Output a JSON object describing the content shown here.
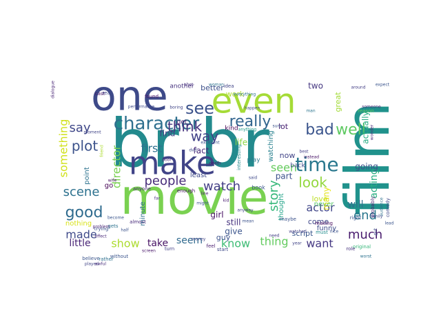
{
  "figure": {
    "words": [
      {
        "text": "br br",
        "color": "#238a8d"
      },
      {
        "text": "movie",
        "color": "#7ad151"
      },
      {
        "text": "film",
        "color": "#20928c"
      },
      {
        "text": "one",
        "color": "#3e4a89"
      },
      {
        "text": "even",
        "color": "#a5db36"
      },
      {
        "text": "make",
        "color": "#404387"
      },
      {
        "text": "character",
        "color": "#2e6f8e"
      },
      {
        "text": "time",
        "color": "#2a788e"
      },
      {
        "text": "see",
        "color": "#3b528b"
      },
      {
        "text": "really",
        "color": "#32658e"
      },
      {
        "text": "good",
        "color": "#2f6b8e"
      },
      {
        "text": "bad",
        "color": "#3a548c"
      },
      {
        "text": "way",
        "color": "#414287"
      },
      {
        "text": "think",
        "color": "#46337e"
      },
      {
        "text": "well",
        "color": "#5ec962"
      },
      {
        "text": "story",
        "color": "#35b779"
      },
      {
        "text": "look",
        "color": "#94d840"
      },
      {
        "text": "plot",
        "color": "#3b528b"
      },
      {
        "text": "people",
        "color": "#472c7a"
      },
      {
        "text": "watch",
        "color": "#433e85"
      },
      {
        "text": "scene",
        "color": "#2c718e"
      },
      {
        "text": "made",
        "color": "#3e4989"
      },
      {
        "text": "know",
        "color": "#3dbc74"
      },
      {
        "text": "show",
        "color": "#addc30"
      },
      {
        "text": "much",
        "color": "#481b6d"
      },
      {
        "text": "end",
        "color": "#2a768e"
      },
      {
        "text": "actor",
        "color": "#404688"
      },
      {
        "text": "say",
        "color": "#3f4788"
      },
      {
        "text": "first",
        "color": "#2d708e"
      },
      {
        "text": "something",
        "color": "#d0e11c"
      },
      {
        "text": "director",
        "color": "#7ad151"
      },
      {
        "text": "seem",
        "color": "#306a8e"
      },
      {
        "text": "thing",
        "color": "#63cb5f"
      },
      {
        "text": "little",
        "color": "#482475"
      },
      {
        "text": "take",
        "color": "#471365"
      },
      {
        "text": "acting",
        "color": "#26ad81"
      },
      {
        "text": "will",
        "color": "#2d708e"
      },
      {
        "text": "want",
        "color": "#453882"
      },
      {
        "text": "seen",
        "color": "#65cb5e"
      },
      {
        "text": "find",
        "color": "#433d84"
      },
      {
        "text": "fact",
        "color": "#482979"
      },
      {
        "text": "life",
        "color": "#8bd646"
      },
      {
        "text": "go",
        "color": "#440154"
      },
      {
        "text": "going",
        "color": "#3b528b"
      },
      {
        "text": "actually",
        "color": "#25ac82"
      },
      {
        "text": "give",
        "color": "#3a548c"
      },
      {
        "text": "still",
        "color": "#46337e"
      },
      {
        "text": "work",
        "color": "#addc30"
      },
      {
        "text": "two",
        "color": "#453781"
      },
      {
        "text": "point",
        "color": "#2c728e"
      },
      {
        "text": "part",
        "color": "#3b518b"
      },
      {
        "text": "lot",
        "color": "#482071"
      },
      {
        "text": "never",
        "color": "#56c667"
      },
      {
        "text": "love",
        "color": "#bddf26"
      },
      {
        "text": "many",
        "color": "#e5e419"
      },
      {
        "text": "better",
        "color": "#3c4f8a"
      },
      {
        "text": "guy",
        "color": "#3b528b"
      },
      {
        "text": "girl",
        "color": "#471063"
      },
      {
        "text": "come",
        "color": "#3f4889"
      },
      {
        "text": "now",
        "color": "#414487"
      },
      {
        "text": "kind",
        "color": "#440154"
      },
      {
        "text": "great",
        "color": "#a2da37"
      },
      {
        "text": "watching",
        "color": "#27808e"
      },
      {
        "text": "funny",
        "color": "#3e4c8a"
      },
      {
        "text": "nothing",
        "color": "#d8e219"
      },
      {
        "text": "another",
        "color": "#46327e"
      },
      {
        "text": "script",
        "color": "#39568c"
      },
      {
        "text": "minute",
        "color": "#2e6e8e"
      },
      {
        "text": "thought",
        "color": "#1fa287"
      },
      {
        "text": "got",
        "color": "#481b6d"
      },
      {
        "text": "back",
        "color": "#3e4a89"
      },
      {
        "text": "interesting",
        "color": "#238a8d"
      },
      {
        "text": "least",
        "color": "#3e4989"
      },
      {
        "text": "play",
        "color": "#2a788e"
      },
      {
        "text": "enough",
        "color": "#471063"
      },
      {
        "text": "book",
        "color": "#3a548c"
      },
      {
        "text": "making",
        "color": "#46085c"
      },
      {
        "text": "right",
        "color": "#3b528b"
      },
      {
        "text": "probably",
        "color": "#481f70"
      },
      {
        "text": "original",
        "color": "#35b779"
      },
      {
        "text": "reason",
        "color": "#5ec962"
      },
      {
        "text": "comedy",
        "color": "#3f4788"
      },
      {
        "text": "believe",
        "color": "#3a548c"
      },
      {
        "text": "rather",
        "color": "#2d708e"
      },
      {
        "text": "anyone",
        "color": "#482878"
      },
      {
        "text": "turn",
        "color": "#433e85"
      },
      {
        "text": "idea",
        "color": "#414487"
      },
      {
        "text": "cast",
        "color": "#471365"
      },
      {
        "text": "real",
        "color": "#3e4989"
      },
      {
        "text": "maybe",
        "color": "#3b528b"
      },
      {
        "text": "must",
        "color": "#228c8d"
      },
      {
        "text": "role",
        "color": "#46327e"
      },
      {
        "text": "start",
        "color": "#3e4989"
      },
      {
        "text": "feel",
        "color": "#481c6e"
      },
      {
        "text": "trying",
        "color": "#3b518b"
      },
      {
        "text": "almost",
        "color": "#472a7a"
      },
      {
        "text": "gets",
        "color": "#2c728e"
      },
      {
        "text": "without",
        "color": "#3a548c"
      },
      {
        "text": "friend",
        "color": "#addc30"
      },
      {
        "text": "found",
        "color": "#481467"
      },
      {
        "text": "anything",
        "color": "#1e9b8a"
      },
      {
        "text": "put",
        "color": "#3d4e8a"
      },
      {
        "text": "audience",
        "color": "#2d708e"
      },
      {
        "text": "need",
        "color": "#433e85"
      },
      {
        "text": "man",
        "color": "#2b748e"
      },
      {
        "text": "sure",
        "color": "#3b528b"
      },
      {
        "text": "played",
        "color": "#414487"
      },
      {
        "text": "awful",
        "color": "#472c7a"
      },
      {
        "text": "worst",
        "color": "#2c728e"
      },
      {
        "text": "death",
        "color": "#481769"
      },
      {
        "text": "money",
        "color": "#414487"
      },
      {
        "text": "shot",
        "color": "#472f7d"
      },
      {
        "text": "might",
        "color": "#3b528b"
      },
      {
        "text": "someone",
        "color": "#482878"
      },
      {
        "text": "around",
        "color": "#433e85"
      },
      {
        "text": "performance",
        "color": "#3e4989"
      },
      {
        "text": "problem",
        "color": "#482475"
      },
      {
        "text": "become",
        "color": "#3a548c"
      },
      {
        "text": "wife",
        "color": "#471063"
      },
      {
        "text": "dvd",
        "color": "#3e4989"
      },
      {
        "text": "kid",
        "color": "#481b6d"
      },
      {
        "text": "everything",
        "color": "#2c728e"
      },
      {
        "text": "anyway",
        "color": "#414487"
      },
      {
        "text": "wonder",
        "color": "#482878"
      },
      {
        "text": "nice",
        "color": "#3b528b"
      },
      {
        "text": "watched",
        "color": "#433e85"
      },
      {
        "text": "instead",
        "color": "#481467"
      },
      {
        "text": "said",
        "color": "#3e4989"
      },
      {
        "text": "excellent",
        "color": "#3a548c"
      },
      {
        "text": "poor",
        "color": "#482475"
      },
      {
        "text": "boring",
        "color": "#414487"
      },
      {
        "text": "mean",
        "color": "#3b528b"
      },
      {
        "text": "far",
        "color": "#46327e"
      },
      {
        "text": "happen",
        "color": "#3e4989"
      },
      {
        "text": "screen",
        "color": "#481769"
      },
      {
        "text": "woman",
        "color": "#2c728e"
      },
      {
        "text": "year",
        "color": "#414487"
      },
      {
        "text": "best",
        "color": "#433e85"
      },
      {
        "text": "expect",
        "color": "#3a548c"
      },
      {
        "text": "effect",
        "color": "#482878"
      },
      {
        "text": "half",
        "color": "#3b528b"
      },
      {
        "text": "line",
        "color": "#481b6d"
      },
      {
        "text": "family",
        "color": "#3e4989"
      },
      {
        "text": "moment",
        "color": "#414487"
      },
      {
        "text": "dialogue",
        "color": "#482475"
      },
      {
        "text": "lead",
        "color": "#3a548c"
      }
    ]
  }
}
